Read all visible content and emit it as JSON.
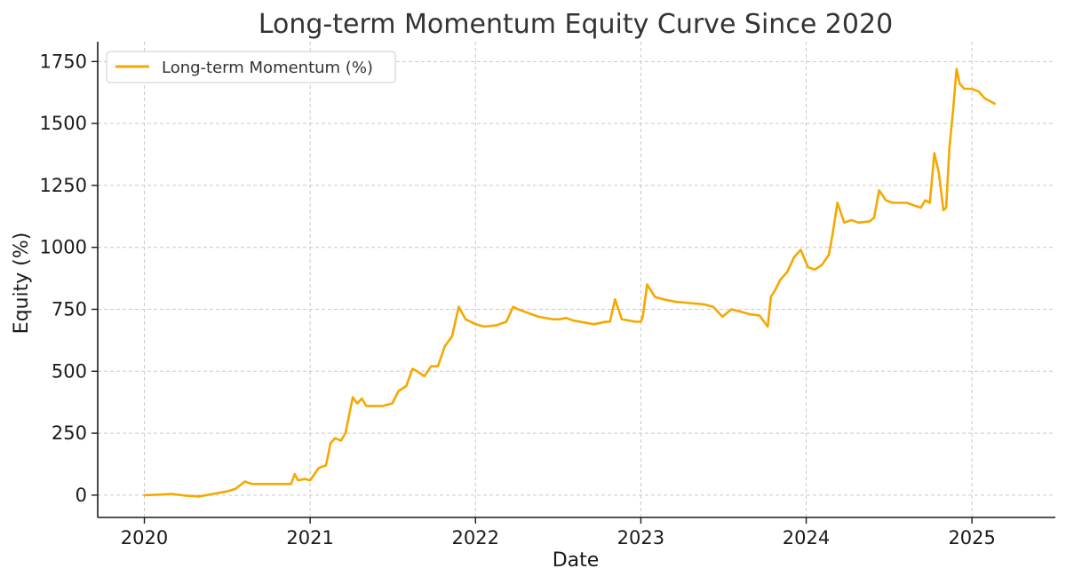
{
  "chart_data": {
    "type": "line",
    "title": "Long-term Momentum Equity Curve Since 2020",
    "xlabel": "Date",
    "ylabel": "Equity (%)",
    "xlim": [
      "2019-09-20",
      "2025-07-04"
    ],
    "ylim": [
      -90,
      1830
    ],
    "x_ticks": [
      "2020",
      "2021",
      "2022",
      "2023",
      "2024",
      "2025"
    ],
    "y_ticks": [
      0,
      250,
      500,
      750,
      1000,
      1250,
      1500,
      1750
    ],
    "grid": true,
    "legend": "top-left",
    "series": [
      {
        "name": "Long-term Momentum (%)",
        "color": "#f5a800",
        "x": [
          "2020-01-01",
          "2020-02-01",
          "2020-03-01",
          "2020-04-01",
          "2020-05-01",
          "2020-06-01",
          "2020-07-01",
          "2020-07-20",
          "2020-08-10",
          "2020-08-25",
          "2020-09-20",
          "2020-10-20",
          "2020-11-20",
          "2020-11-28",
          "2020-12-05",
          "2020-12-20",
          "2021-01-01",
          "2021-01-20",
          "2021-02-05",
          "2021-02-15",
          "2021-02-25",
          "2021-03-10",
          "2021-03-20",
          "2021-04-05",
          "2021-04-15",
          "2021-04-25",
          "2021-05-05",
          "2021-05-20",
          "2021-06-10",
          "2021-07-01",
          "2021-07-15",
          "2021-08-01",
          "2021-08-15",
          "2021-08-25",
          "2021-09-10",
          "2021-09-25",
          "2021-10-10",
          "2021-10-25",
          "2021-11-10",
          "2021-11-25",
          "2021-12-10",
          "2022-01-01",
          "2022-01-20",
          "2022-02-15",
          "2022-03-10",
          "2022-03-25",
          "2022-04-05",
          "2022-04-20",
          "2022-05-20",
          "2022-06-20",
          "2022-07-05",
          "2022-07-20",
          "2022-08-05",
          "2022-08-20",
          "2022-09-20",
          "2022-10-15",
          "2022-10-25",
          "2022-11-05",
          "2022-11-20",
          "2022-12-20",
          "2023-01-01",
          "2023-01-05",
          "2023-01-15",
          "2023-02-01",
          "2023-02-20",
          "2023-03-20",
          "2023-04-20",
          "2023-05-20",
          "2023-06-10",
          "2023-06-30",
          "2023-07-20",
          "2023-08-10",
          "2023-08-30",
          "2023-09-20",
          "2023-09-30",
          "2023-10-08",
          "2023-10-15",
          "2023-10-25",
          "2023-11-05",
          "2023-11-20",
          "2023-12-05",
          "2023-12-20",
          "2024-01-05",
          "2024-01-20",
          "2024-02-05",
          "2024-02-20",
          "2024-02-28",
          "2024-03-10",
          "2024-03-25",
          "2024-04-10",
          "2024-04-25",
          "2024-05-20",
          "2024-05-30",
          "2024-06-10",
          "2024-06-25",
          "2024-07-10",
          "2024-07-25",
          "2024-08-10",
          "2024-08-25",
          "2024-09-10",
          "2024-09-20",
          "2024-09-30",
          "2024-10-10",
          "2024-10-20",
          "2024-10-30",
          "2024-11-05",
          "2024-11-12",
          "2024-11-20",
          "2024-11-28",
          "2024-12-05",
          "2024-12-15",
          "2024-12-30",
          "2025-01-15",
          "2025-01-30",
          "2025-02-10",
          "2025-02-20"
        ],
        "y": [
          0,
          2,
          5,
          -2,
          -5,
          5,
          15,
          25,
          55,
          45,
          45,
          45,
          45,
          85,
          60,
          65,
          60,
          110,
          120,
          210,
          230,
          220,
          250,
          395,
          370,
          390,
          360,
          360,
          360,
          370,
          420,
          440,
          510,
          500,
          480,
          520,
          520,
          600,
          640,
          760,
          710,
          690,
          680,
          685,
          700,
          760,
          750,
          740,
          720,
          710,
          710,
          715,
          705,
          700,
          690,
          700,
          700,
          790,
          710,
          700,
          700,
          720,
          850,
          800,
          790,
          780,
          775,
          770,
          760,
          720,
          750,
          740,
          730,
          725,
          700,
          680,
          800,
          830,
          870,
          900,
          960,
          990,
          920,
          910,
          930,
          970,
          1050,
          1180,
          1100,
          1110,
          1100,
          1105,
          1120,
          1230,
          1190,
          1180,
          1180,
          1180,
          1170,
          1160,
          1190,
          1180,
          1380,
          1300,
          1150,
          1160,
          1400,
          1550,
          1720,
          1660,
          1640,
          1640,
          1630,
          1600,
          1590,
          1580
        ]
      }
    ]
  }
}
